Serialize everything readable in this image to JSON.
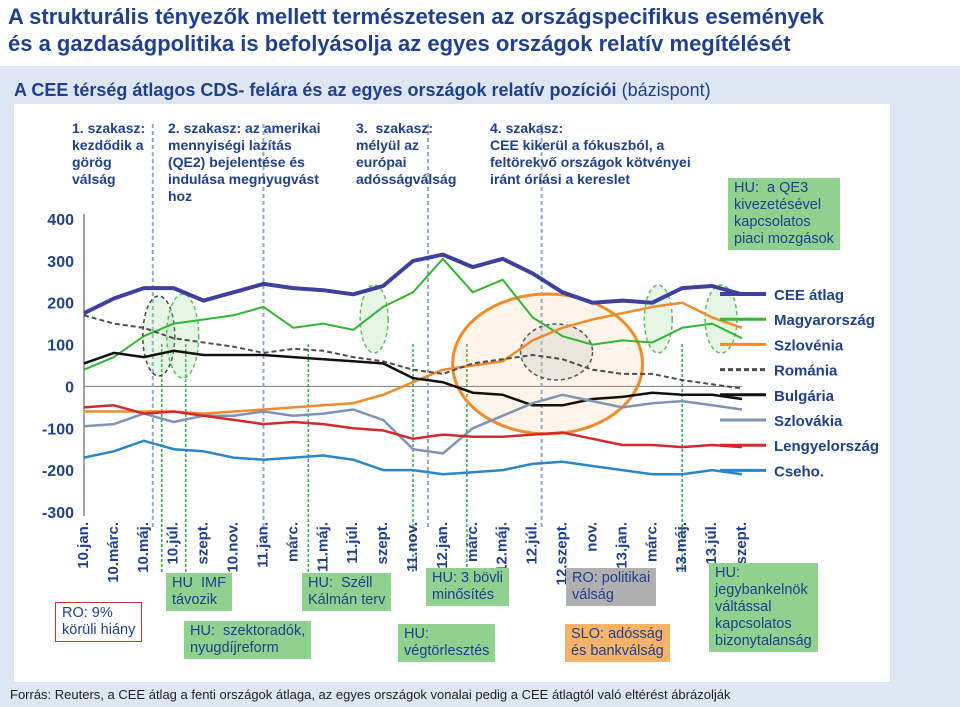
{
  "header": {
    "title_line1": "A strukturális tényezők mellett természetesen az országspecifikus események",
    "title_line2": "és a gazdaságpolitika is befolyásolja az egyes országok relatív megítélését"
  },
  "subtitle": "A CEE térség átlagos CDS- felára és az egyes országok relatív pozíciói",
  "subtitle_unit": "(bázispont)",
  "source": "Forrás: Reuters, a CEE átlag a fenti országok átlaga, az egyes országok vonalai pedig a CEE átlagtól való eltérést ábrázolják",
  "phases": [
    {
      "label": "1. szakasz:\nkezdődik a\ngörög\nválság"
    },
    {
      "label": "2. szakasz: az amerikai\nmennyiségi lazítás\n(QE2) bejelentése és\nindulása megnyugvást\nhoz"
    },
    {
      "label": "3.  szakasz:\nmélyül az\neurópai\nadósságválság"
    },
    {
      "label": "4. szakasz:\nCEE kikerül a fókuszból, a\nfeltörekvő országok kötvényei\niránt óriási a kereslet"
    }
  ],
  "annotations": [
    {
      "id": "hu-qe3",
      "text": "HU:  a QE3\nkivezetésével\nkapcsolatos\npiaci mozgások",
      "style": "green"
    },
    {
      "id": "hu-imf",
      "text": "HU  IMF\ntávozik",
      "style": "green"
    },
    {
      "id": "ro-deficit",
      "text": "RO: 9%\nkörüli hiány",
      "style": "white"
    },
    {
      "id": "hu-sector",
      "text": "HU:  szektoradók,\nnyugdíjreform",
      "style": "green"
    },
    {
      "id": "hu-szell",
      "text": "HU:  Széll\nKálmán terv",
      "style": "green"
    },
    {
      "id": "hu-downgrade",
      "text": "HU: 3 bövli\nminősítés",
      "style": "green"
    },
    {
      "id": "hu-mortgage",
      "text": "HU:\nvégtörlesztés",
      "style": "green"
    },
    {
      "id": "ro-politics",
      "text": "RO: politikai\nválság",
      "style": "grey"
    },
    {
      "id": "slo-debt",
      "text": "SLO: adósság\nés bankválság",
      "style": "orange"
    },
    {
      "id": "hu-central-bank",
      "text": "HU:\njegybankelnök\nváltással\nkapcsolatos\nbizonytalanság",
      "style": "green"
    }
  ],
  "chart_data": {
    "type": "line",
    "yticks": [
      "400",
      "300",
      "200",
      "100",
      "0",
      "-100",
      "-200",
      "-300"
    ],
    "ylim": [
      -300,
      400
    ],
    "grid": false,
    "legend_position": "right",
    "x_labels": [
      "10.jan.",
      "10.márc.",
      "10.máj.",
      "10.júl.",
      "szept.",
      "10.nov.",
      "11.jan.",
      "márc.",
      "11.máj.",
      "11.júl.",
      "szept.",
      "11.nov.",
      "12.jan.",
      "márc.",
      "12.máj.",
      "12.júl.",
      "12.szept.",
      "nov.",
      "13.jan.",
      "márc.",
      "13.máj.",
      "13.júl.",
      "szept."
    ],
    "x": [
      0,
      1,
      2,
      3,
      4,
      5,
      6,
      7,
      8,
      9,
      10,
      11,
      12,
      13,
      14,
      15,
      16,
      17,
      18,
      19,
      20,
      21,
      22
    ],
    "series": [
      {
        "name": "CEE átlag",
        "color": "#3f3f9f",
        "width": 4,
        "values": [
          175,
          210,
          235,
          235,
          205,
          225,
          245,
          235,
          230,
          220,
          240,
          300,
          315,
          285,
          305,
          270,
          225,
          200,
          205,
          200,
          235,
          240,
          220
        ]
      },
      {
        "name": "Magyarország",
        "color": "#33b533",
        "width": 2,
        "values": [
          40,
          70,
          120,
          150,
          160,
          170,
          190,
          140,
          150,
          135,
          190,
          225,
          305,
          225,
          255,
          165,
          120,
          100,
          110,
          105,
          140,
          150,
          115
        ]
      },
      {
        "name": "Szlovénia",
        "color": "#f08b2c",
        "width": 2.5,
        "values": [
          -60,
          -60,
          -60,
          -60,
          -65,
          -60,
          -55,
          -50,
          -45,
          -40,
          -20,
          10,
          40,
          50,
          60,
          110,
          140,
          160,
          175,
          190,
          200,
          165,
          140
        ]
      },
      {
        "name": "Románia",
        "color": "#4d4d4d",
        "width": 2,
        "dash": "5,3",
        "values": [
          170,
          150,
          140,
          115,
          105,
          95,
          80,
          90,
          85,
          70,
          60,
          40,
          30,
          55,
          65,
          75,
          65,
          40,
          30,
          30,
          15,
          5,
          -5
        ]
      },
      {
        "name": "Bulgária",
        "color": "#111111",
        "width": 2.5,
        "values": [
          55,
          80,
          70,
          85,
          75,
          75,
          75,
          70,
          65,
          60,
          55,
          20,
          10,
          -15,
          -20,
          -45,
          -45,
          -30,
          -25,
          -15,
          -20,
          -20,
          -30
        ]
      },
      {
        "name": "Szlovákia",
        "color": "#7f93b5",
        "width": 2.5,
        "values": [
          -95,
          -90,
          -65,
          -85,
          -70,
          -70,
          -60,
          -70,
          -65,
          -55,
          -80,
          -150,
          -160,
          -100,
          -70,
          -40,
          -20,
          -35,
          -50,
          -40,
          -35,
          -45,
          -55
        ]
      },
      {
        "name": "Lengyelország",
        "color": "#d22a2a",
        "width": 2.5,
        "values": [
          -50,
          -45,
          -65,
          -60,
          -70,
          -80,
          -90,
          -85,
          -90,
          -100,
          -105,
          -125,
          -115,
          -120,
          -120,
          -115,
          -110,
          -125,
          -140,
          -140,
          -145,
          -140,
          -145
        ]
      },
      {
        "name": "Cseho.",
        "color": "#2a86c8",
        "width": 2.5,
        "values": [
          -170,
          -155,
          -130,
          -150,
          -155,
          -170,
          -175,
          -170,
          -165,
          -175,
          -200,
          -200,
          -210,
          -205,
          -200,
          -185,
          -180,
          -190,
          -200,
          -210,
          -210,
          -200,
          -210
        ]
      }
    ]
  }
}
